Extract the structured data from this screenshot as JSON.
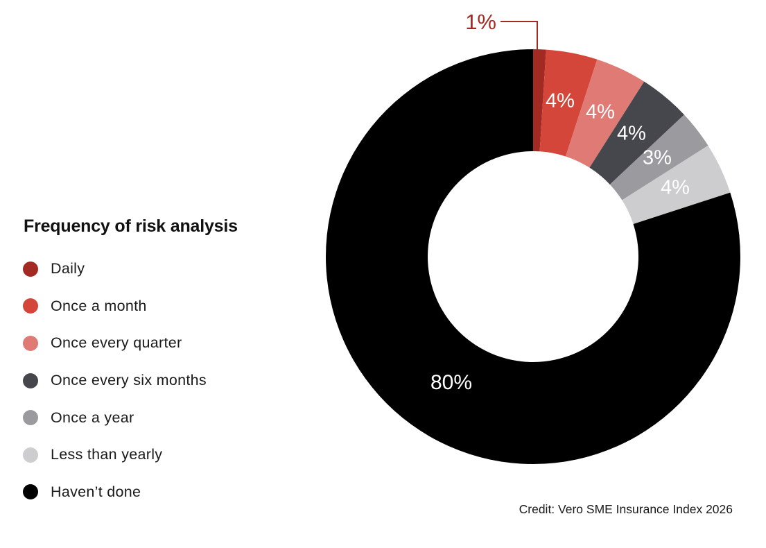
{
  "chart_data": {
    "type": "pie",
    "subtype": "donut",
    "title": "Frequency of risk analysis",
    "slices": [
      {
        "label": "Daily",
        "value": 1,
        "display": "1%",
        "color": "#a32a22"
      },
      {
        "label": "Once a month",
        "value": 4,
        "display": "4%",
        "color": "#d4453a"
      },
      {
        "label": "Once every quarter",
        "value": 4,
        "display": "4%",
        "color": "#df7b74"
      },
      {
        "label": "Once every six months",
        "value": 4,
        "display": "4%",
        "color": "#46474c"
      },
      {
        "label": "Once a year",
        "value": 3,
        "display": "3%",
        "color": "#9a9a9f"
      },
      {
        "label": "Less than yearly",
        "value": 4,
        "display": "4%",
        "color": "#cdcdcf"
      },
      {
        "label": "Haven’t done",
        "value": 80,
        "display": "80%",
        "color": "#000000"
      }
    ],
    "legend_placement": "left",
    "credit": "Credit: Vero SME Insurance Index 2026"
  }
}
